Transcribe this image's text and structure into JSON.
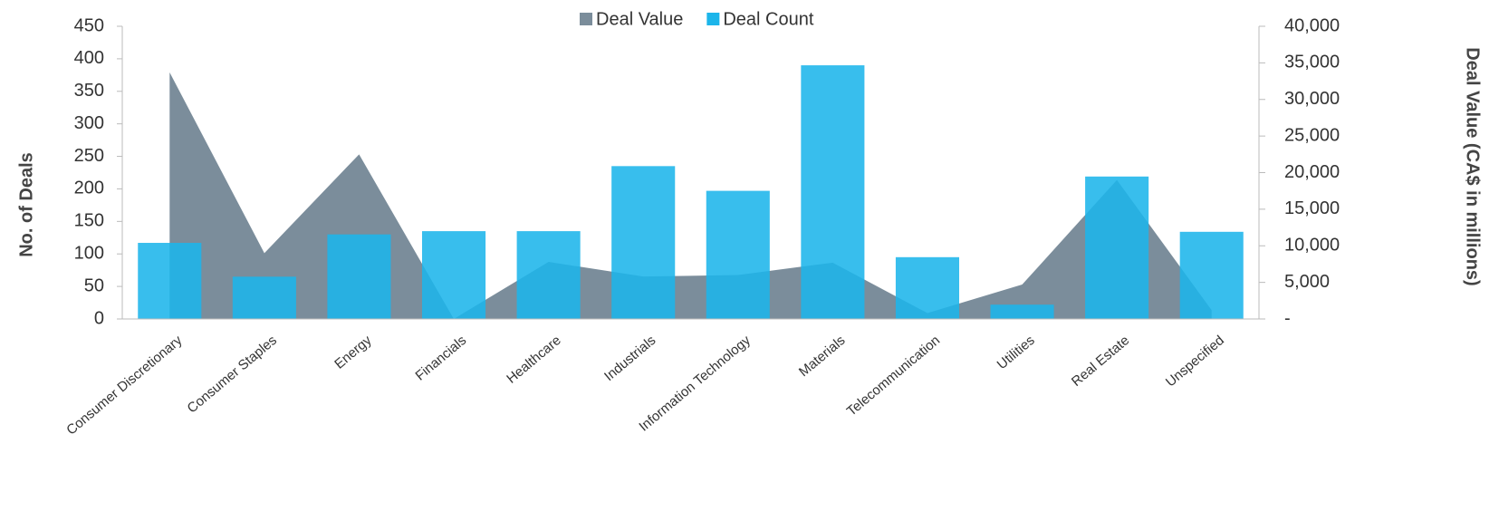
{
  "chart_data": {
    "type": "bar",
    "categories": [
      "Consumer Discretionary",
      "Consumer Staples",
      "Energy",
      "Financials",
      "Healthcare",
      "Industrials",
      "Information Technology",
      "Materials",
      "Telecommunication",
      "Utilities",
      "Real Estate",
      "Unspecified"
    ],
    "series": [
      {
        "name": "Deal Value",
        "color": "#7b8d9b",
        "type": "area",
        "axis": "y2",
        "values": [
          33700,
          9000,
          22500,
          0,
          7800,
          5800,
          6000,
          7700,
          800,
          4700,
          19000,
          1200
        ]
      },
      {
        "name": "Deal Count",
        "color": "#1cb5ea",
        "type": "bar",
        "axis": "y",
        "values": [
          117,
          65,
          130,
          135,
          135,
          235,
          197,
          390,
          95,
          22,
          219,
          134
        ]
      }
    ],
    "ylabel": "No. of Deals",
    "y2label": "Deal Value (CA$ in  millions)",
    "ylim": [
      0,
      450
    ],
    "yticks": [
      0,
      50,
      100,
      150,
      200,
      250,
      300,
      350,
      400,
      450
    ],
    "y2lim": [
      0,
      40000
    ],
    "y2ticks": [
      {
        "value": 0,
        "label": "-"
      },
      {
        "value": 5000,
        "label": "5,000"
      },
      {
        "value": 10000,
        "label": "10,000"
      },
      {
        "value": 15000,
        "label": "15,000"
      },
      {
        "value": 20000,
        "label": "20,000"
      },
      {
        "value": 25000,
        "label": "25,000"
      },
      {
        "value": 30000,
        "label": "30,000"
      },
      {
        "value": 35000,
        "label": "35,000"
      },
      {
        "value": 40000,
        "label": "40,000"
      }
    ],
    "legend": "top"
  }
}
